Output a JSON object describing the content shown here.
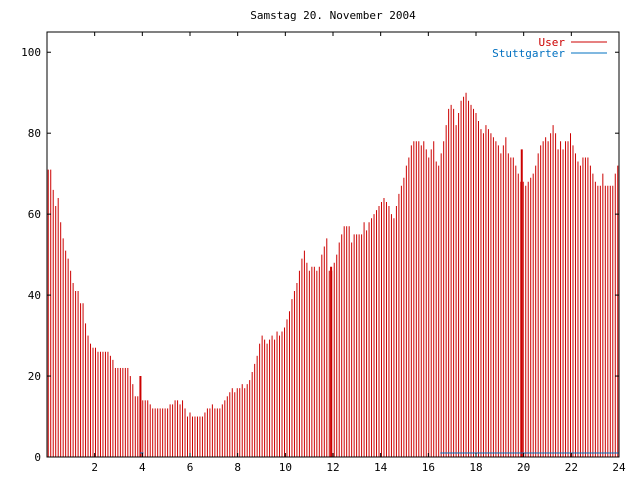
{
  "chart_data": {
    "type": "bar",
    "title": "Samstag 20. November 2004",
    "xlabel": "",
    "ylabel": "",
    "xlim": [
      0,
      24
    ],
    "ylim": [
      0,
      105
    ],
    "x_ticks": [
      "2",
      "4",
      "6",
      "8",
      "10",
      "12",
      "14",
      "16",
      "18",
      "20",
      "22",
      "24"
    ],
    "y_ticks": [
      "0",
      "20",
      "40",
      "60",
      "80",
      "100"
    ],
    "grid": false,
    "legend_position": "top-right",
    "series": [
      {
        "name": "User",
        "color": "#cc0000",
        "step_hours": 0.0833,
        "values": [
          71,
          71,
          66,
          62,
          64,
          58,
          54,
          51,
          49,
          46,
          43,
          41,
          41,
          38,
          38,
          33,
          30,
          28,
          27,
          27,
          26,
          26,
          26,
          26,
          26,
          25,
          24,
          22,
          22,
          22,
          22,
          22,
          22,
          20,
          18,
          15,
          15,
          14,
          14,
          14,
          14,
          13,
          12,
          12,
          12,
          12,
          12,
          12,
          12,
          13,
          13,
          14,
          14,
          13,
          14,
          12,
          10,
          11,
          10,
          10,
          10,
          10,
          10,
          11,
          12,
          12,
          13,
          12,
          12,
          12,
          13,
          14,
          15,
          16,
          17,
          16,
          17,
          17,
          18,
          17,
          18,
          19,
          21,
          23,
          25,
          28,
          30,
          29,
          28,
          29,
          30,
          29,
          31,
          30,
          31,
          32,
          34,
          36,
          39,
          41,
          43,
          46,
          49,
          51,
          48,
          46,
          47,
          47,
          46,
          47,
          50,
          52,
          54,
          46,
          46,
          48,
          50,
          53,
          55,
          57,
          57,
          57,
          53,
          55,
          55,
          55,
          55,
          58,
          56,
          58,
          59,
          60,
          61,
          62,
          63,
          64,
          63,
          62,
          60,
          59,
          62,
          65,
          67,
          69,
          72,
          74,
          77,
          78,
          78,
          78,
          77,
          78,
          76,
          74,
          76,
          78,
          73,
          72,
          75,
          78,
          82,
          86,
          87,
          86,
          82,
          85,
          88,
          89,
          90,
          88,
          87,
          86,
          85,
          83,
          81,
          80,
          82,
          81,
          80,
          79,
          78,
          77,
          75,
          77,
          79,
          75,
          74,
          74,
          72,
          70,
          68,
          68,
          67,
          68,
          69,
          70,
          72,
          75,
          77,
          78,
          79,
          78,
          80,
          82,
          80,
          76,
          78,
          76,
          78,
          78,
          80,
          77,
          75,
          73,
          72,
          74,
          74,
          74,
          72,
          70,
          68,
          67,
          67,
          70,
          67,
          67,
          67,
          67,
          70,
          72
        ]
      },
      {
        "name": "Stuttgarter",
        "color": "#0070c0",
        "segments": [
          {
            "x_start": 3.9,
            "x_end": 4.05,
            "value": 1
          },
          {
            "x_start": 16.5,
            "x_end": 20.0,
            "value": 1
          },
          {
            "x_start": 20.0,
            "x_end": 24.0,
            "value": 1
          }
        ]
      }
    ],
    "highlight_markers": [
      {
        "x": 3.92,
        "value": 20
      },
      {
        "x": 11.92,
        "value": 47
      },
      {
        "x": 19.92,
        "value": 76
      }
    ]
  }
}
